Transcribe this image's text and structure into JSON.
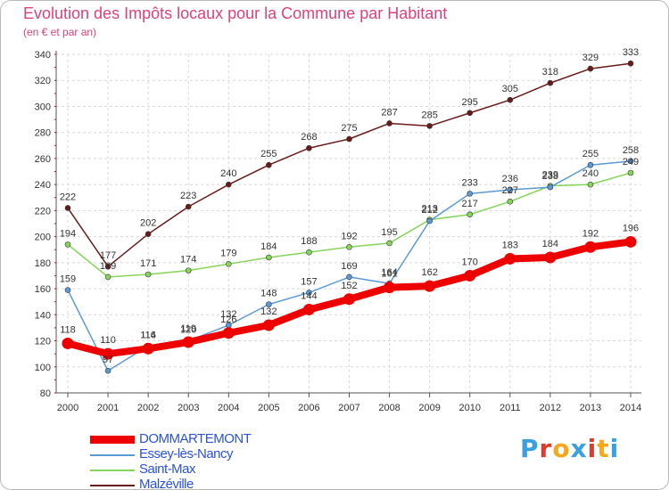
{
  "header": {
    "title": "Evolution des Impôts locaux pour la Commune par Habitant",
    "subtitle": "(en € et par an)"
  },
  "brand": {
    "chars": [
      "P",
      "r",
      "o",
      "x",
      "i",
      "t",
      "i"
    ],
    "colors": [
      "#3aa0e0",
      "#e03a2a",
      "#f4a81c",
      "#3aa0e0",
      "#e03a2a",
      "#f4a81c",
      "#3aa0e0"
    ]
  },
  "colors": {
    "title": "#e0407a",
    "legend_text": "#2a52e0",
    "grid": "#d8d8d8",
    "axis": "#555555"
  },
  "chart_data": {
    "type": "line",
    "categories": [
      "2000",
      "2001",
      "2002",
      "2003",
      "2004",
      "2005",
      "2006",
      "2007",
      "2008",
      "2009",
      "2010",
      "2011",
      "2012",
      "2013",
      "2014"
    ],
    "ylim": [
      80,
      340
    ],
    "yticks": [
      80,
      100,
      120,
      140,
      160,
      180,
      200,
      220,
      240,
      260,
      280,
      300,
      320,
      340
    ],
    "grid": "horizontal dashed",
    "legend_position": "bottom-left",
    "series": [
      {
        "name": "Malzéville",
        "color": "#6b1a1a",
        "values": [
          222,
          177,
          202,
          223,
          240,
          255,
          268,
          275,
          287,
          285,
          295,
          305,
          318,
          329,
          333
        ]
      },
      {
        "name": "Saint-Max",
        "color": "#86d45a",
        "values": [
          194,
          169,
          171,
          174,
          179,
          184,
          188,
          192,
          195,
          213,
          217,
          227,
          239,
          240,
          249
        ]
      },
      {
        "name": "Essey-lès-Nancy",
        "color": "#5a9ad4",
        "values": [
          159,
          97,
          116,
          120,
          132,
          148,
          157,
          169,
          164,
          212,
          233,
          236,
          238,
          255,
          258
        ]
      },
      {
        "name": "DOMMARTEMONT",
        "color": "#ee0000",
        "values": [
          118,
          110,
          114,
          119,
          126,
          132,
          144,
          152,
          161,
          162,
          170,
          183,
          184,
          192,
          196
        ]
      }
    ],
    "legend_order": [
      "DOMMARTEMONT",
      "Essey-lès-Nancy",
      "Saint-Max",
      "Malzéville"
    ]
  }
}
